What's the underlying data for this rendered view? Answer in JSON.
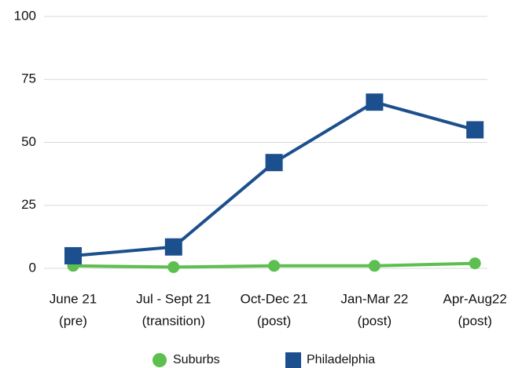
{
  "chart_data": {
    "type": "line",
    "categories": [
      [
        "June 21",
        "(pre)"
      ],
      [
        "Jul - Sept 21",
        "(transition)"
      ],
      [
        "Oct-Dec 21",
        "(post)"
      ],
      [
        "Jan-Mar 22",
        "(post)"
      ],
      [
        "Apr-Aug22",
        "(post)"
      ]
    ],
    "series": [
      {
        "name": "Suburbs",
        "color": "#5cbf4f",
        "marker": "circle",
        "values": [
          1,
          0.5,
          1,
          1,
          2
        ]
      },
      {
        "name": "Philadelphia",
        "color": "#1c4f8d",
        "marker": "square",
        "values": [
          5,
          8.5,
          42,
          66,
          55
        ]
      }
    ],
    "ylim": [
      0,
      100
    ],
    "yticks": [
      0,
      25,
      50,
      75,
      100
    ],
    "grid": true,
    "legend": "bottom"
  }
}
